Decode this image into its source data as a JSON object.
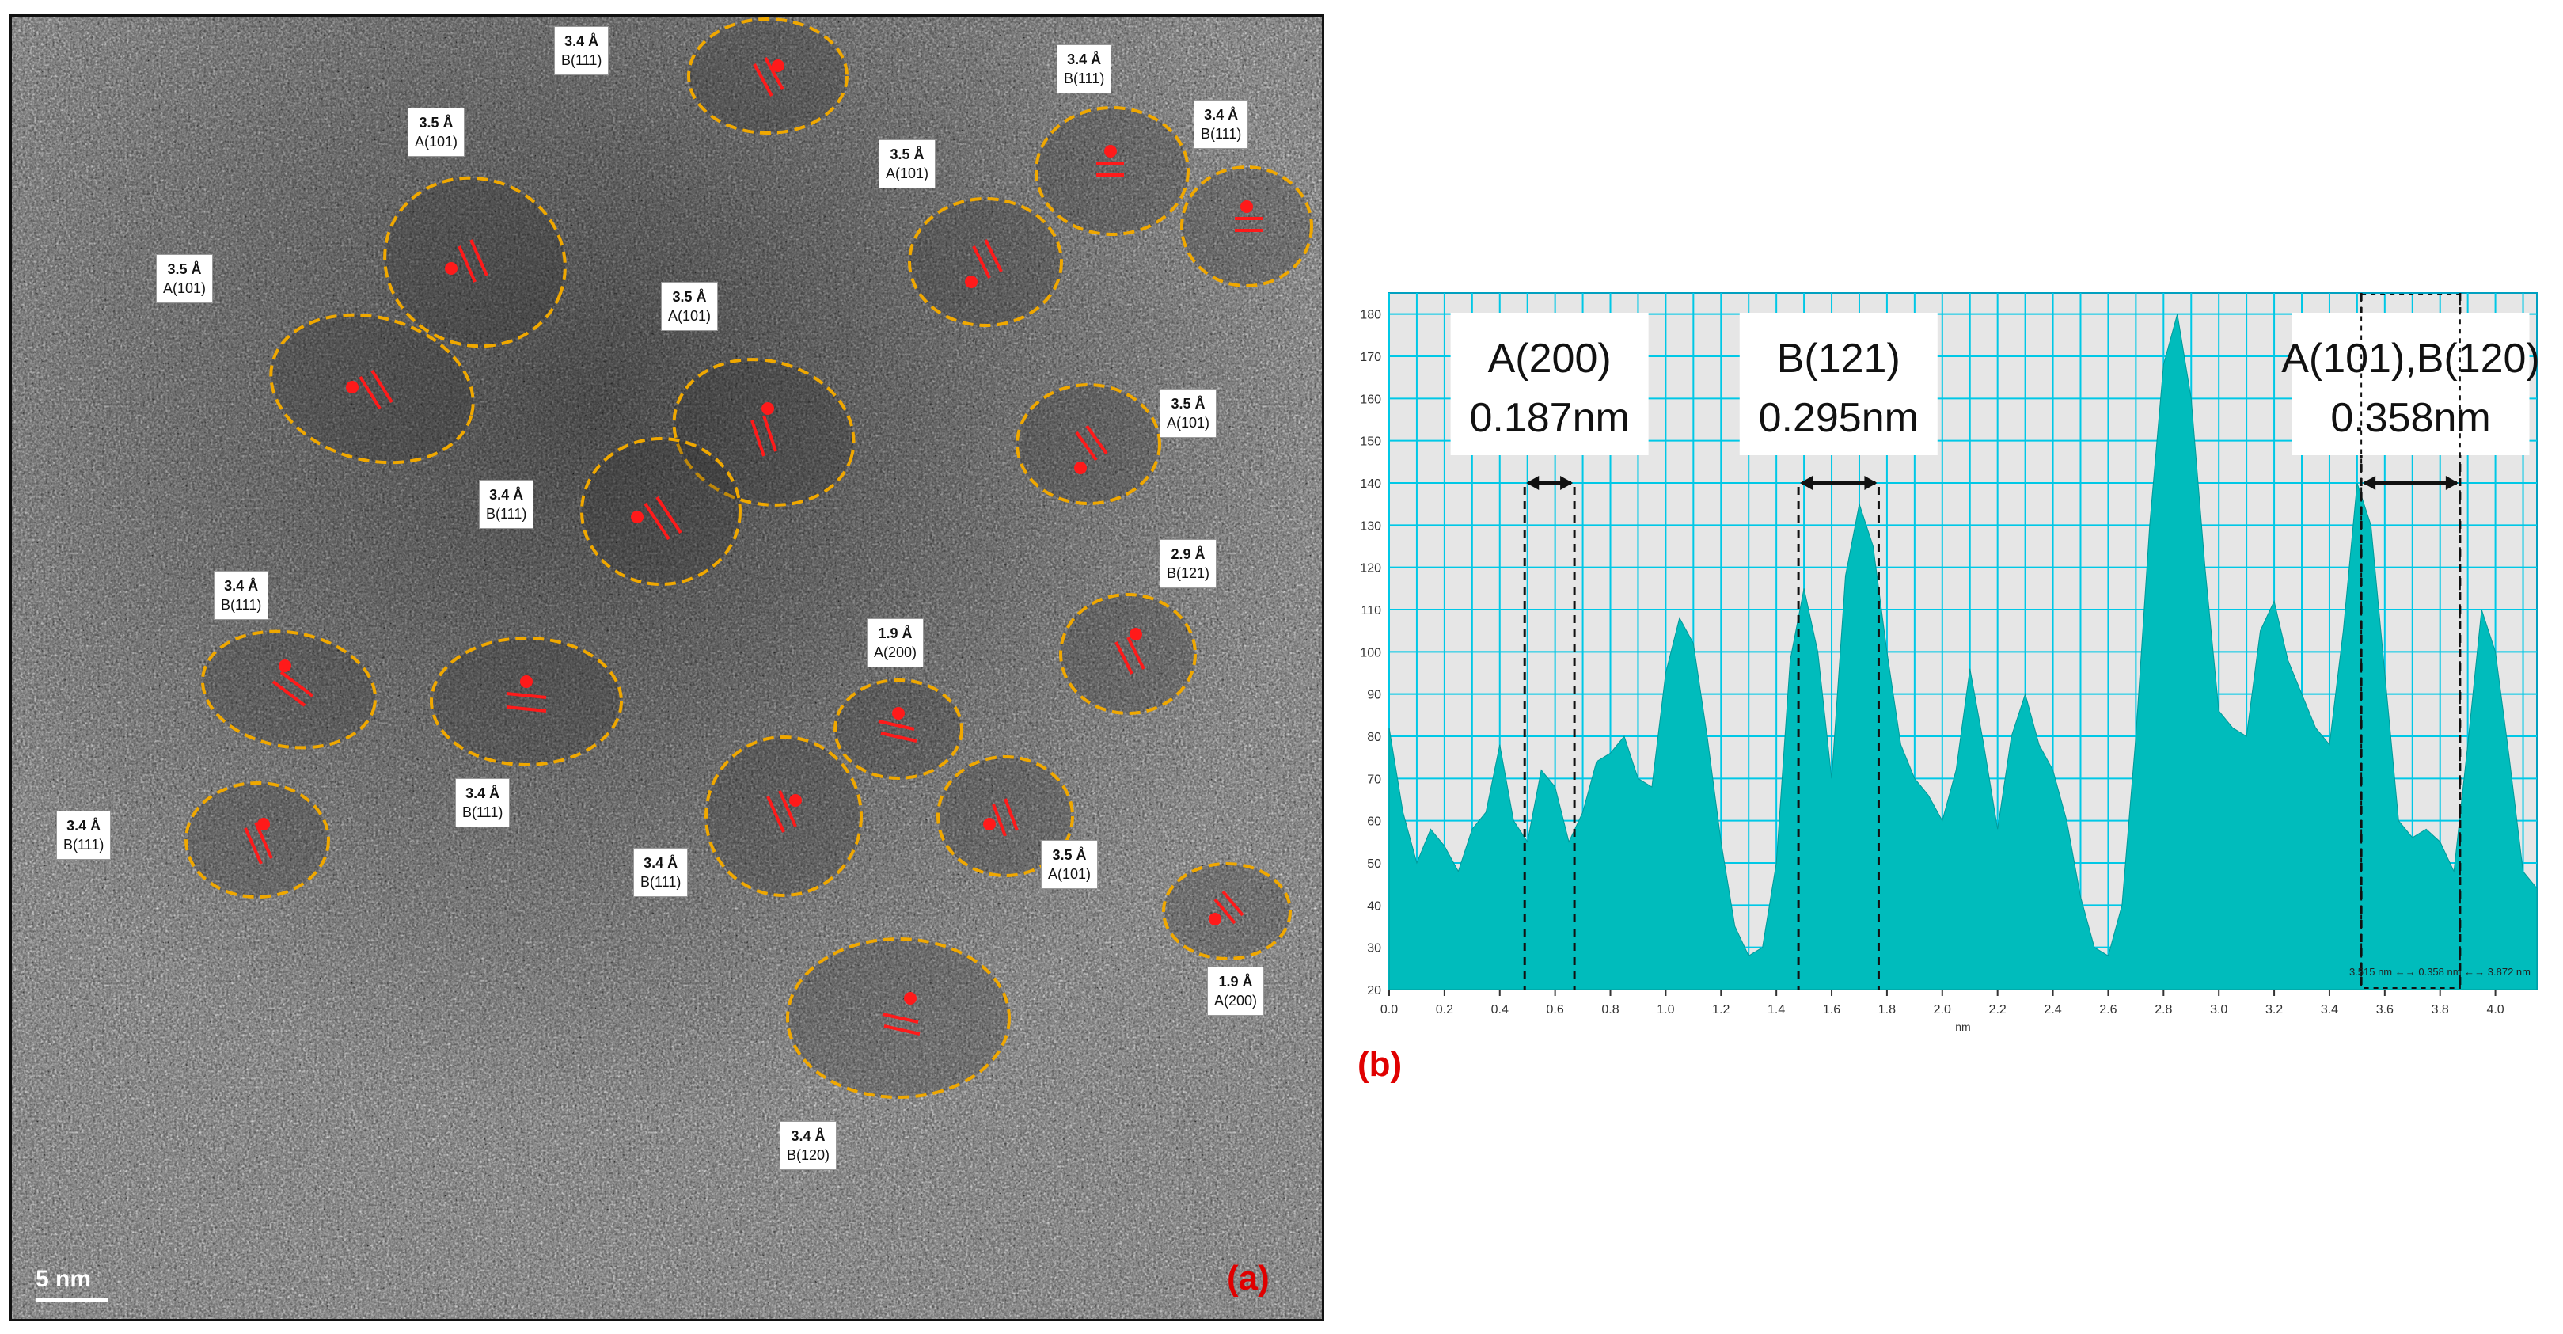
{
  "panel_a": {
    "panel_label": "(a)",
    "scale_bar": "5  nm",
    "grains": [
      {
        "spacing": "3.4 Å",
        "plane": "B(111)"
      },
      {
        "spacing": "3.5 Å",
        "plane": "A(101)"
      },
      {
        "spacing": "3.5 Å",
        "plane": "A(101)"
      },
      {
        "spacing": "3.4 Å",
        "plane": "B(111)"
      },
      {
        "spacing": "3.4 Å",
        "plane": "B(111)"
      },
      {
        "spacing": "3.5 Å",
        "plane": "A(101)"
      },
      {
        "spacing": "3.5 Å",
        "plane": "A(101)"
      },
      {
        "spacing": "3.5 Å",
        "plane": "A(101)"
      },
      {
        "spacing": "3.4 Å",
        "plane": "B(111)"
      },
      {
        "spacing": "2.9 Å",
        "plane": "B(121)"
      },
      {
        "spacing": "3.4 Å",
        "plane": "B(111)"
      },
      {
        "spacing": "1.9 Å",
        "plane": "A(200)"
      },
      {
        "spacing": "3.4 Å",
        "plane": "B(111)"
      },
      {
        "spacing": "3.4 Å",
        "plane": "B(111)"
      },
      {
        "spacing": "3.4 Å",
        "plane": "B(111)"
      },
      {
        "spacing": "3.5 Å",
        "plane": "A(101)"
      },
      {
        "spacing": "1.9 Å",
        "plane": "A(200)"
      },
      {
        "spacing": "3.4 Å",
        "plane": "B(120)"
      }
    ]
  },
  "panel_b": {
    "panel_label": "(b)",
    "annotations": [
      {
        "plane": "A(200)",
        "spacing": "0.187nm",
        "from": 0.49,
        "to": 0.67
      },
      {
        "plane": "B(121)",
        "spacing": "0.295nm",
        "from": 1.48,
        "to": 1.77
      },
      {
        "plane": "A(101),B(120)",
        "spacing": "0.358nm",
        "from": 3.515,
        "to": 3.872
      }
    ],
    "readout": "3.515 nm ←→ 0.358 nm ←→ 3.872 nm"
  },
  "chart_data": {
    "type": "area",
    "xlabel": "nm",
    "ylabel": "",
    "xlim": [
      0,
      4.15
    ],
    "ylim": [
      20,
      185
    ],
    "xticks": [
      0.0,
      0.2,
      0.4,
      0.6,
      0.8,
      1.0,
      1.2,
      1.4,
      1.6,
      1.8,
      2.0,
      2.2,
      2.4,
      2.6,
      2.8,
      3.0,
      3.2,
      3.4,
      3.6,
      3.8,
      4.0
    ],
    "yticks": [
      20,
      30,
      40,
      50,
      60,
      70,
      80,
      90,
      100,
      110,
      120,
      130,
      140,
      150,
      160,
      170,
      180
    ],
    "grid": true,
    "fill_color": "#00bcbc",
    "x": [
      0.0,
      0.05,
      0.1,
      0.15,
      0.2,
      0.25,
      0.3,
      0.35,
      0.4,
      0.45,
      0.5,
      0.55,
      0.6,
      0.65,
      0.7,
      0.75,
      0.8,
      0.85,
      0.9,
      0.95,
      1.0,
      1.05,
      1.1,
      1.15,
      1.2,
      1.25,
      1.3,
      1.35,
      1.4,
      1.45,
      1.5,
      1.55,
      1.6,
      1.65,
      1.7,
      1.75,
      1.8,
      1.85,
      1.9,
      1.95,
      2.0,
      2.05,
      2.1,
      2.15,
      2.2,
      2.25,
      2.3,
      2.35,
      2.4,
      2.45,
      2.5,
      2.55,
      2.6,
      2.65,
      2.7,
      2.75,
      2.8,
      2.85,
      2.9,
      2.95,
      3.0,
      3.05,
      3.1,
      3.15,
      3.2,
      3.25,
      3.3,
      3.35,
      3.4,
      3.45,
      3.5,
      3.55,
      3.6,
      3.65,
      3.7,
      3.75,
      3.8,
      3.85,
      3.9,
      3.95,
      4.0,
      4.05,
      4.1,
      4.15
    ],
    "values": [
      82,
      62,
      50,
      58,
      54,
      48,
      58,
      62,
      78,
      60,
      55,
      72,
      68,
      55,
      62,
      74,
      76,
      80,
      70,
      68,
      95,
      108,
      102,
      80,
      55,
      35,
      28,
      30,
      50,
      98,
      115,
      100,
      70,
      118,
      135,
      125,
      100,
      78,
      70,
      66,
      60,
      72,
      96,
      78,
      58,
      80,
      90,
      78,
      72,
      60,
      42,
      30,
      28,
      40,
      80,
      130,
      168,
      180,
      160,
      120,
      86,
      82,
      80,
      105,
      112,
      98,
      90,
      82,
      78,
      105,
      140,
      130,
      95,
      60,
      56,
      58,
      55,
      48,
      78,
      110,
      100,
      75,
      48,
      44
    ]
  }
}
